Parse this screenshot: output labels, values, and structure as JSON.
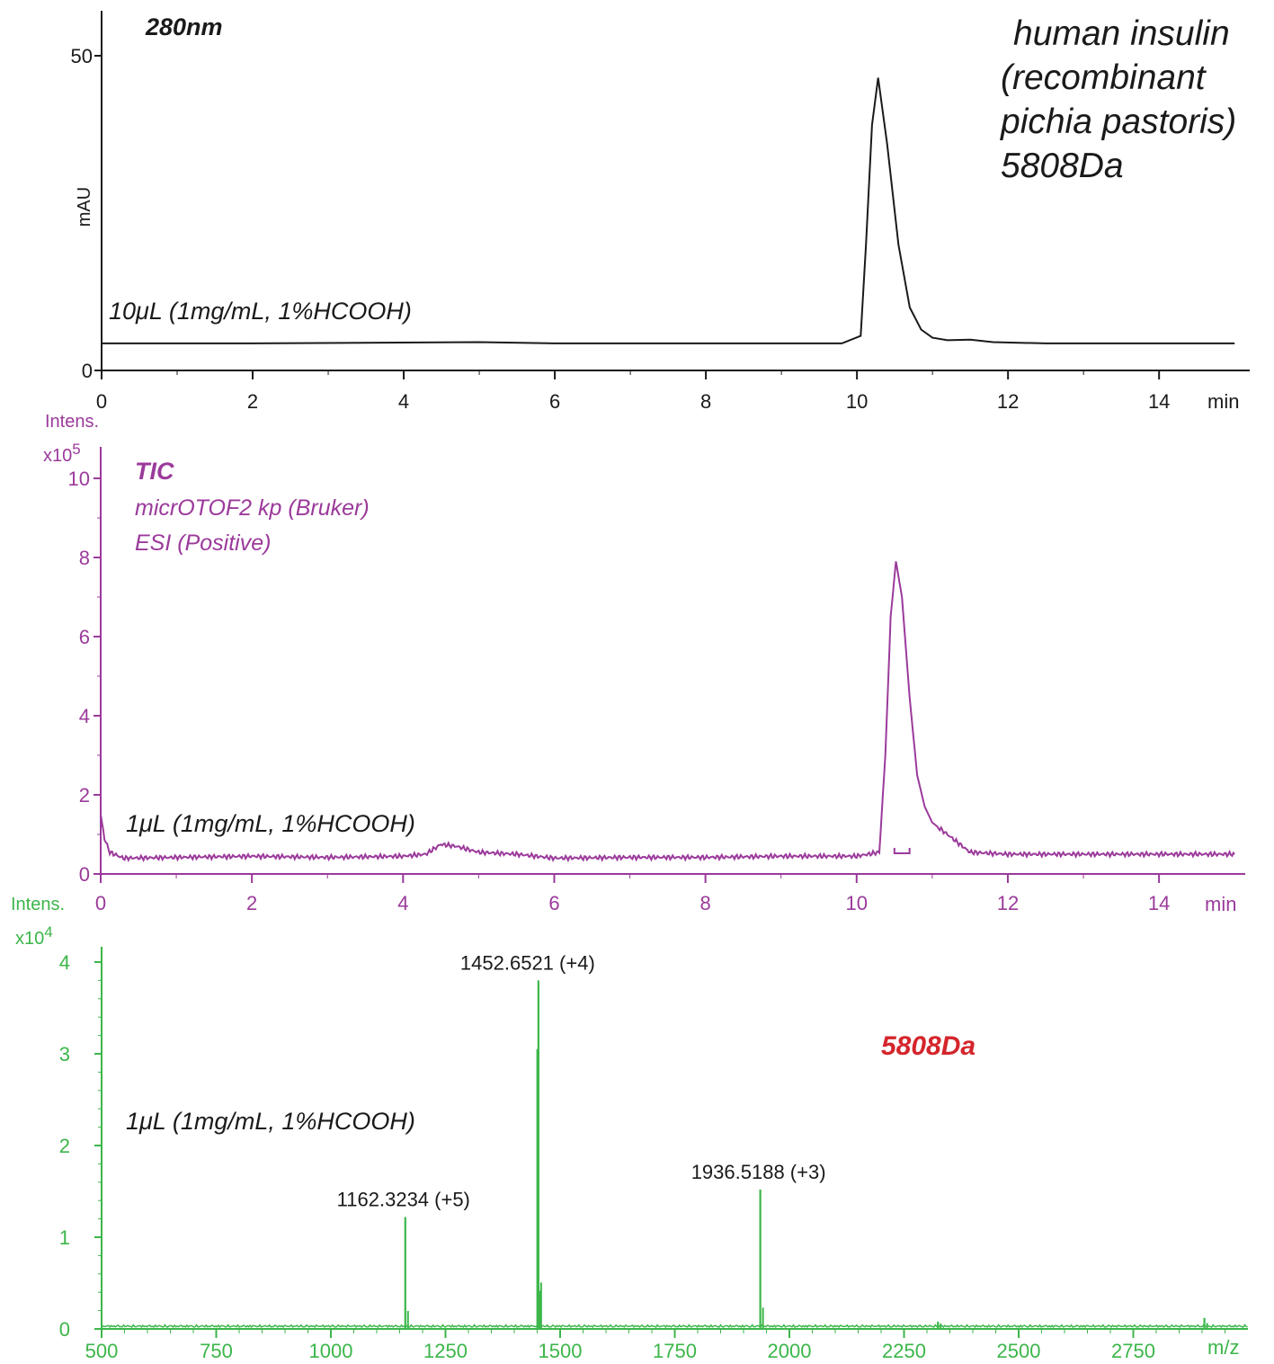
{
  "colors": {
    "uv": "#1a1a1a",
    "tic": "#9b3a9b",
    "ms": "#3cb64a",
    "accent": "#d4252b",
    "annot": "#1a1a1a"
  },
  "title_block": [
    "human insulin",
    "(recombinant",
    "pichia pastoris)",
    "5808Da"
  ],
  "chart_data": [
    {
      "type": "line",
      "id": "uv",
      "title": "280nm",
      "ylabel": "mAU",
      "xlabel": "min",
      "annotation": "10μL (1mg/mL, 1%HCOOH)",
      "xlim": [
        0,
        15
      ],
      "ylim": [
        0,
        50
      ],
      "xticks": [
        0,
        2,
        4,
        6,
        8,
        10,
        12,
        14
      ],
      "yticks": [
        0,
        50
      ],
      "series": [
        {
          "x": [
            0,
            2,
            5,
            6,
            8,
            9,
            9.8,
            10.05,
            10.12,
            10.2,
            10.28,
            10.4,
            10.55,
            10.7,
            10.85,
            11.0,
            11.2,
            11.5,
            11.8,
            12.5,
            13,
            14,
            15
          ],
          "y": [
            4.3,
            4.3,
            4.5,
            4.3,
            4.3,
            4.3,
            4.3,
            5.5,
            20,
            39,
            46.5,
            36,
            20,
            10,
            6.5,
            5.2,
            4.8,
            4.9,
            4.5,
            4.3,
            4.3,
            4.3,
            4.3
          ]
        }
      ]
    },
    {
      "type": "line",
      "id": "tic",
      "ylabel": "Intens.",
      "yscale_label": "x10",
      "yscale_exp": "5",
      "xlabel": "min",
      "labels": [
        "TIC",
        "micrOTOF2 kp (Bruker)",
        "ESI (Positive)"
      ],
      "annotation": "1μL (1mg/mL, 1%HCOOH)",
      "xlim": [
        0,
        15
      ],
      "ylim": [
        0,
        10.3
      ],
      "xticks": [
        0,
        2,
        4,
        6,
        8,
        10,
        12,
        14
      ],
      "yticks": [
        0,
        2,
        4,
        6,
        8,
        10
      ],
      "series": [
        {
          "x": [
            0,
            0.05,
            0.12,
            0.3,
            1,
            2,
            3,
            4,
            4.3,
            4.5,
            4.7,
            5,
            5.5,
            6,
            7,
            8,
            9,
            10,
            10.3,
            10.38,
            10.45,
            10.52,
            10.6,
            10.7,
            10.8,
            10.9,
            11.0,
            11.2,
            11.5,
            12,
            13,
            14,
            15
          ],
          "y": [
            1.5,
            0.9,
            0.55,
            0.4,
            0.42,
            0.45,
            0.42,
            0.45,
            0.5,
            0.75,
            0.7,
            0.55,
            0.5,
            0.4,
            0.42,
            0.42,
            0.45,
            0.45,
            0.55,
            3,
            6.5,
            7.9,
            7.0,
            4.5,
            2.5,
            1.7,
            1.3,
            1.0,
            0.55,
            0.5,
            0.5,
            0.5,
            0.5
          ]
        }
      ],
      "range_marker": [
        10.5,
        10.7
      ]
    },
    {
      "type": "spectrum",
      "id": "ms",
      "ylabel": "Intens.",
      "yscale_label": "x10",
      "yscale_exp": "4",
      "xlabel": "m/z",
      "annotation": "1μL (1mg/mL, 1%HCOOH)",
      "mass_label": "5808Da",
      "xlim": [
        500,
        3000
      ],
      "ylim": [
        0,
        4.2
      ],
      "xticks": [
        500,
        750,
        1000,
        1250,
        1500,
        1750,
        2000,
        2250,
        2500,
        2750
      ],
      "yticks": [
        0,
        1,
        2,
        3,
        4
      ],
      "peaks": [
        {
          "mz": 1162.3234,
          "intensity": 1.22,
          "label": "1162.3234 (+5)"
        },
        {
          "mz": 1452.6521,
          "intensity": 3.8,
          "label": "1452.6521 (+4)"
        },
        {
          "mz": 1450.4,
          "intensity": 3.05,
          "label": ""
        },
        {
          "mz": 1936.5188,
          "intensity": 1.52,
          "label": "1936.5188 (+3)"
        },
        {
          "mz": 2324,
          "intensity": 0.08,
          "label": ""
        },
        {
          "mz": 2905,
          "intensity": 0.12,
          "label": ""
        }
      ]
    }
  ]
}
